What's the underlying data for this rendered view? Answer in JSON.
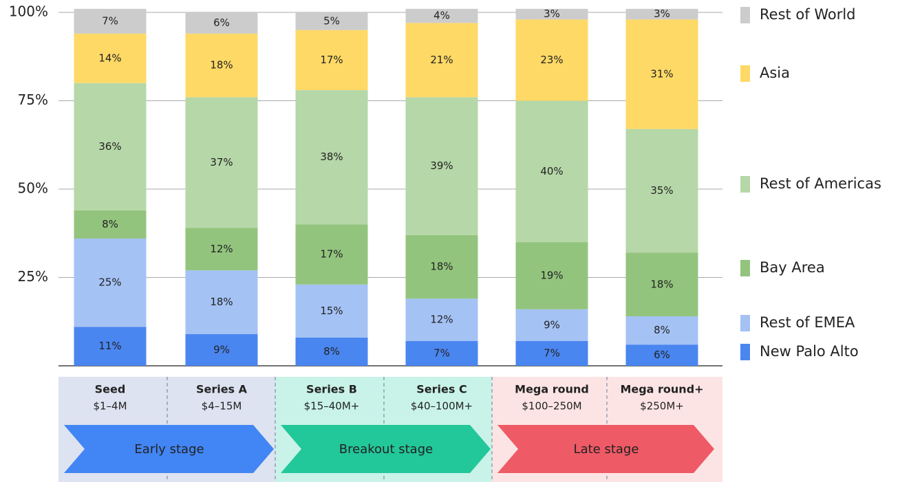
{
  "chart_data": {
    "type": "stacked_bar",
    "categories": [
      "Seed",
      "Series A",
      "Series B",
      "Series C",
      "Mega round",
      "Mega round+"
    ],
    "category_ranges": [
      "$1–4M",
      "$4–15M",
      "$15–40M+",
      "$40–100M+",
      "$100–250M",
      "$250M+"
    ],
    "stages": [
      "Early stage",
      "Breakout stage",
      "Late stage"
    ],
    "series": [
      {
        "name": "New Palo Alto",
        "color": "#4a86f0",
        "values": [
          11,
          9,
          8,
          7,
          7,
          6
        ],
        "value_labels": [
          "11%",
          "9%",
          "8%",
          "7%",
          "7%",
          "6%"
        ]
      },
      {
        "name": "Rest of EMEA",
        "color": "#a4c2f4",
        "values": [
          25,
          18,
          15,
          12,
          9,
          8
        ],
        "value_labels": [
          "25%",
          "18%",
          "15%",
          "12%",
          "9%",
          "8%"
        ]
      },
      {
        "name": "Bay Area",
        "color": "#93c47d",
        "values": [
          8,
          12,
          17,
          18,
          19,
          18
        ],
        "value_labels": [
          "8%",
          "12%",
          "17%",
          "18%",
          "19%",
          "18%"
        ]
      },
      {
        "name": "Rest of Americas",
        "color": "#b6d7a8",
        "values": [
          36,
          37,
          38,
          39,
          40,
          35
        ],
        "value_labels": [
          "36%",
          "37%",
          "38%",
          "39%",
          "40%",
          "35%"
        ]
      },
      {
        "name": "Asia",
        "color": "#ffd966",
        "values": [
          14,
          18,
          17,
          21,
          23,
          31
        ],
        "value_labels": [
          "14%",
          "18%",
          "17%",
          "21%",
          "23%",
          "31%"
        ]
      },
      {
        "name": "Rest of World",
        "color": "#cccccc",
        "values": [
          7,
          6,
          5,
          4,
          3,
          3
        ],
        "value_labels": [
          "7%",
          "6%",
          "5%",
          "4%",
          "3%",
          "3%"
        ]
      }
    ],
    "ylim": [
      0,
      100
    ],
    "yticks": [
      {
        "value": 25,
        "label": "25%"
      },
      {
        "value": 50,
        "label": "50%"
      },
      {
        "value": 75,
        "label": "75%"
      },
      {
        "value": 100,
        "label": "100%"
      }
    ],
    "grid": true
  }
}
